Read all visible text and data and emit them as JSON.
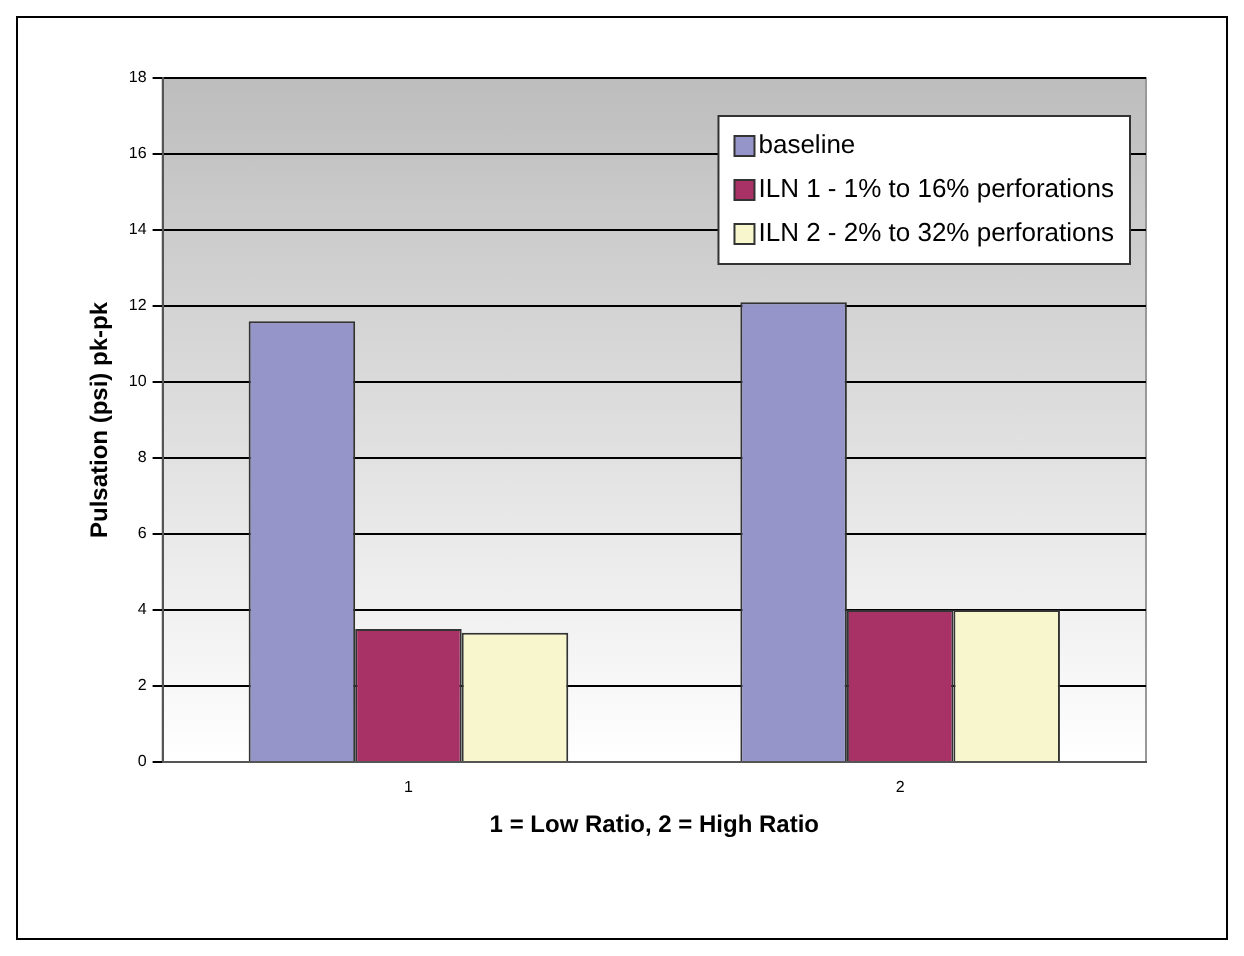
{
  "chart_data": {
    "type": "bar",
    "xlabel": "1 = Low Ratio, 2 = High Ratio",
    "ylabel": "Pulsation (psi) pk-pk",
    "categories": [
      "1",
      "2"
    ],
    "series": [
      {
        "name": "baseline",
        "color": "#9595c9",
        "values": [
          11.6,
          12.1
        ]
      },
      {
        "name": "ILN 1 - 1% to 16% perforations",
        "color": "#a83265",
        "values": [
          3.5,
          4.0
        ]
      },
      {
        "name": "ILN 2 - 2% to 32% perforations",
        "color": "#f8f6cc",
        "values": [
          3.4,
          4.0
        ]
      }
    ],
    "ylim": [
      0,
      18
    ],
    "yticks": [
      0,
      2,
      4,
      6,
      8,
      10,
      12,
      14,
      16,
      18
    ],
    "grid": "y",
    "legend": "top right"
  }
}
